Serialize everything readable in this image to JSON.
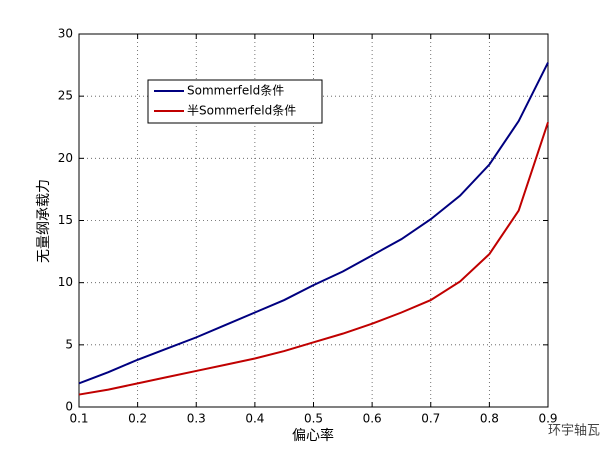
{
  "chart_data": {
    "type": "line",
    "xlabel": "偏心率",
    "ylabel": "无量纲承载力",
    "x": [
      0.1,
      0.15,
      0.2,
      0.25,
      0.3,
      0.35,
      0.4,
      0.45,
      0.5,
      0.55,
      0.6,
      0.65,
      0.7,
      0.75,
      0.8,
      0.85,
      0.9
    ],
    "series": [
      {
        "name": "Sommerfeld条件",
        "color": "#000080",
        "values": [
          1.9,
          2.8,
          3.8,
          4.7,
          5.6,
          6.6,
          7.6,
          8.6,
          9.8,
          10.9,
          12.2,
          13.5,
          15.1,
          17.0,
          19.5,
          23.0,
          27.7
        ]
      },
      {
        "name": "半Sommerfeld条件",
        "color": "#c00000",
        "values": [
          1.0,
          1.4,
          1.9,
          2.4,
          2.9,
          3.4,
          3.9,
          4.5,
          5.2,
          5.9,
          6.7,
          7.6,
          8.6,
          10.1,
          12.3,
          15.8,
          22.9
        ]
      }
    ],
    "xlim": [
      0.1,
      0.9
    ],
    "xticks": [
      0.1,
      0.2,
      0.3,
      0.4,
      0.5,
      0.6,
      0.7,
      0.8,
      0.9
    ],
    "ylim": [
      0,
      30
    ],
    "yticks": [
      0,
      5,
      10,
      15,
      20,
      25,
      30
    ],
    "grid": true,
    "legend": "upper left",
    "watermark": "环宇轴瓦"
  }
}
